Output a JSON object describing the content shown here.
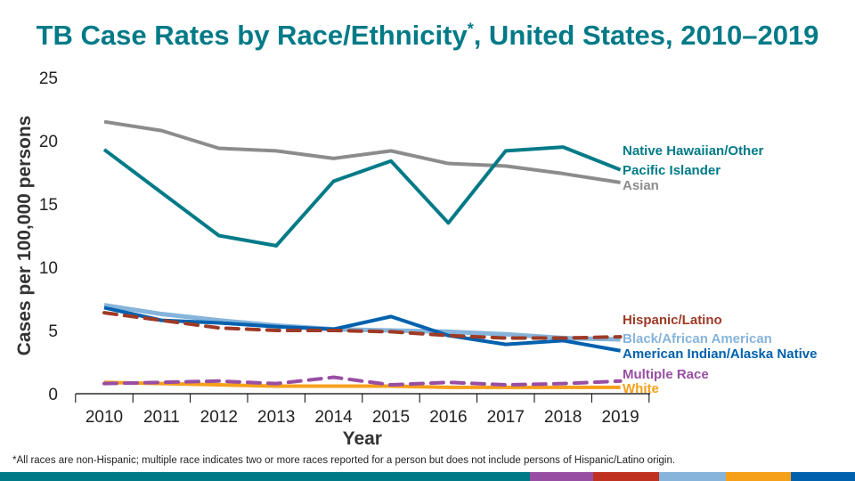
{
  "title_main": "TB Case Rates by Race/Ethnicity",
  "title_mark": "*",
  "title_rest": ", United States, 2010–2019",
  "footnote": "*All races are non-Hispanic; multiple race indicates two or more races reported for a person but does not include persons of Hispanic/Latino origin.",
  "bottom_bar_colors": [
    "#007A87",
    "#984EA3",
    "#C0311F",
    "#86B4DB",
    "#F6A01A",
    "#0061AE"
  ],
  "chart_data": {
    "type": "line",
    "title": "TB Case Rates by Race/Ethnicity*, United States, 2010–2019",
    "xlabel": "Year",
    "ylabel": "Cases per 100,000 persons",
    "ylim": [
      0,
      25
    ],
    "yticks": [
      0,
      5,
      10,
      15,
      20,
      25
    ],
    "categories": [
      "2010",
      "2011",
      "2012",
      "2013",
      "2014",
      "2015",
      "2016",
      "2017",
      "2018",
      "2019"
    ],
    "grid": false,
    "legend": "direct labels at right end of lines",
    "series": [
      {
        "name": "Native Hawaiian/Other Pacific Islander",
        "label_lines": [
          "Native Hawaiian/Other",
          "Pacific Islander"
        ],
        "color": "#007A87",
        "dashed": false,
        "values": [
          19.3,
          15.9,
          12.5,
          11.7,
          16.8,
          18.4,
          13.5,
          19.2,
          19.5,
          17.7
        ]
      },
      {
        "name": "Asian",
        "label_lines": [
          "Asian"
        ],
        "color": "#8C8C8C",
        "dashed": false,
        "values": [
          21.5,
          20.8,
          19.4,
          19.2,
          18.6,
          19.2,
          18.2,
          18.0,
          17.4,
          16.7
        ]
      },
      {
        "name": "Hispanic/Latino",
        "label_lines": [
          "Hispanic/Latino"
        ],
        "color": "#9E3A26",
        "dashed": true,
        "values": [
          6.4,
          5.8,
          5.2,
          5.0,
          5.0,
          4.9,
          4.6,
          4.4,
          4.4,
          4.5
        ]
      },
      {
        "name": "Black/African American",
        "label_lines": [
          "Black/African American"
        ],
        "color": "#86B4DB",
        "dashed": false,
        "values": [
          7.0,
          6.3,
          5.8,
          5.4,
          5.1,
          5.0,
          4.9,
          4.7,
          4.4,
          4.3
        ]
      },
      {
        "name": "American Indian/Alaska Native",
        "label_lines": [
          "American Indian/Alaska Native"
        ],
        "color": "#0061AE",
        "dashed": false,
        "values": [
          6.8,
          5.8,
          5.6,
          5.3,
          5.1,
          6.1,
          4.6,
          3.9,
          4.2,
          3.4
        ]
      },
      {
        "name": "Multiple Race",
        "label_lines": [
          "Multiple Race"
        ],
        "color": "#984EA3",
        "dashed": true,
        "values": [
          0.8,
          0.9,
          1.0,
          0.8,
          1.3,
          0.7,
          0.9,
          0.7,
          0.8,
          1.0
        ]
      },
      {
        "name": "White",
        "label_lines": [
          "White"
        ],
        "color": "#F6A01A",
        "dashed": false,
        "values": [
          0.9,
          0.8,
          0.7,
          0.6,
          0.6,
          0.6,
          0.5,
          0.5,
          0.5,
          0.5
        ]
      }
    ]
  }
}
